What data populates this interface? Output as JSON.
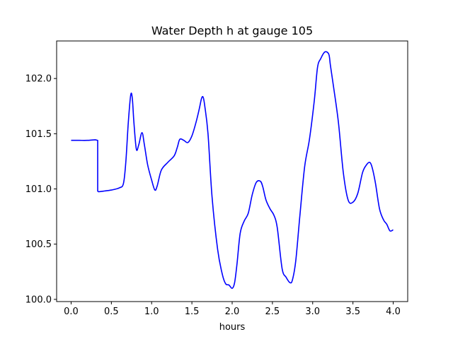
{
  "chart_data": {
    "type": "line",
    "title": "Water Depth h at gauge 105",
    "xlabel": "hours",
    "ylabel": "",
    "xlim": [
      -0.18,
      4.18
    ],
    "ylim": [
      99.98,
      102.34
    ],
    "xticks": [
      0.0,
      0.5,
      1.0,
      1.5,
      2.0,
      2.5,
      3.0,
      3.5,
      4.0
    ],
    "xtick_labels": [
      "0.0",
      "0.5",
      "1.0",
      "1.5",
      "2.0",
      "2.5",
      "3.0",
      "3.5",
      "4.0"
    ],
    "yticks": [
      100.0,
      100.5,
      101.0,
      101.5,
      102.0
    ],
    "ytick_labels": [
      "100.0",
      "100.5",
      "101.0",
      "101.5",
      "102.0"
    ],
    "grid": false,
    "color": "#0000ff",
    "series": [
      {
        "x": [
          0.0,
          0.1,
          0.2,
          0.3,
          0.33,
          0.33,
          0.34,
          0.4,
          0.5,
          0.6,
          0.65,
          0.68,
          0.71,
          0.74,
          0.76,
          0.78,
          0.81,
          0.84,
          0.88,
          0.91,
          0.95,
          1.0,
          1.04,
          1.07,
          1.12,
          1.2,
          1.28,
          1.32,
          1.35,
          1.4,
          1.45,
          1.5,
          1.55,
          1.59,
          1.62,
          1.64,
          1.66,
          1.7,
          1.75,
          1.82,
          1.88,
          1.92,
          1.96,
          2.0,
          2.03,
          2.06,
          2.1,
          2.15,
          2.2,
          2.25,
          2.3,
          2.35,
          2.38,
          2.42,
          2.47,
          2.52,
          2.56,
          2.62,
          2.67,
          2.72,
          2.75,
          2.79,
          2.84,
          2.9,
          2.96,
          3.02,
          3.06,
          3.1,
          3.15,
          3.2,
          3.22,
          3.26,
          3.32,
          3.38,
          3.44,
          3.5,
          3.56,
          3.62,
          3.67,
          3.71,
          3.74,
          3.78,
          3.83,
          3.88,
          3.92,
          3.96,
          4.0
        ],
        "y": [
          101.44,
          101.44,
          101.44,
          101.445,
          101.44,
          100.98,
          100.975,
          100.98,
          100.99,
          101.01,
          101.05,
          101.25,
          101.6,
          101.85,
          101.82,
          101.6,
          101.36,
          101.4,
          101.51,
          101.4,
          101.22,
          101.08,
          100.99,
          101.03,
          101.17,
          101.24,
          101.3,
          101.38,
          101.45,
          101.44,
          101.42,
          101.48,
          101.6,
          101.72,
          101.82,
          101.83,
          101.75,
          101.5,
          100.93,
          100.45,
          100.22,
          100.14,
          100.13,
          100.1,
          100.15,
          100.32,
          100.6,
          100.71,
          100.78,
          100.95,
          101.06,
          101.07,
          101.02,
          100.9,
          100.82,
          100.76,
          100.65,
          100.28,
          100.2,
          100.15,
          100.18,
          100.35,
          100.75,
          101.2,
          101.45,
          101.8,
          102.1,
          102.18,
          102.24,
          102.22,
          102.12,
          101.92,
          101.6,
          101.15,
          100.9,
          100.88,
          100.96,
          101.15,
          101.22,
          101.24,
          101.19,
          101.05,
          100.82,
          100.72,
          100.68,
          100.62,
          100.63
        ]
      }
    ]
  }
}
